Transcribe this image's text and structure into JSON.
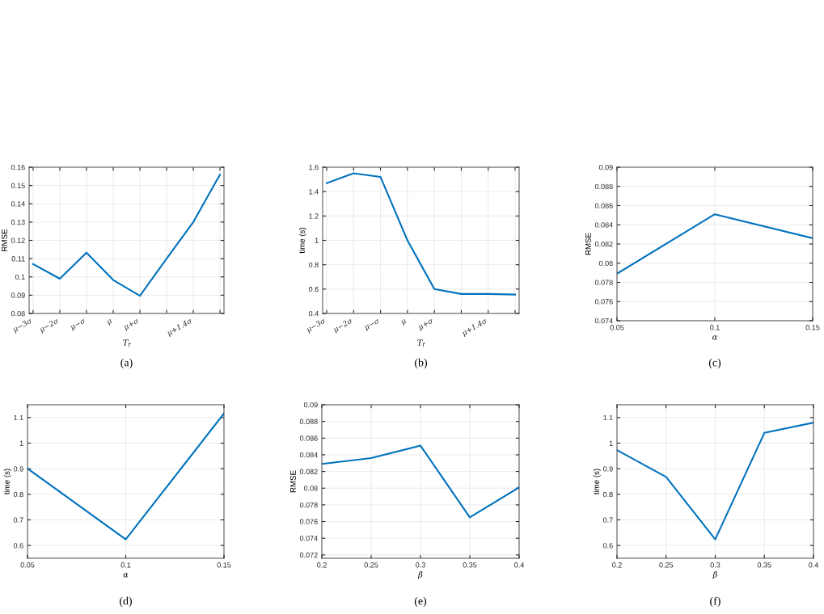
{
  "chart_data": [
    {
      "type": "line",
      "xlabel": "T$_{f}$",
      "ylabel": "RMSE",
      "annotations": [
        "(a)"
      ],
      "grid": true,
      "categories": [
        "μ−3σ",
        "μ−2σ",
        "μ−σ",
        "μ",
        "μ+σ",
        null,
        "μ+1.4σ",
        null
      ],
      "series": [
        {
          "color": "#0072bd",
          "values": [
            0.107,
            0.099,
            0.1133,
            0.0983,
            0.0897,
            0.11,
            0.13,
            0.156
          ]
        }
      ],
      "ylim": [
        0.08,
        0.16
      ],
      "yticks": [
        0.08,
        0.09,
        0.1,
        0.11,
        0.12,
        0.13,
        0.14,
        0.15,
        0.16
      ]
    },
    {
      "type": "line",
      "xlabel": "T$_{f}$",
      "ylabel": "time (s)",
      "annotations": [
        "(b)"
      ],
      "grid": true,
      "categories": [
        "μ−3σ",
        "μ−2σ",
        "μ−σ",
        "μ",
        "μ+σ",
        null,
        "μ+1.4σ",
        null
      ],
      "series": [
        {
          "color": "#0072bd",
          "values": [
            1.47,
            1.55,
            1.52,
            1.0,
            0.6,
            0.56,
            0.56,
            0.555
          ]
        }
      ],
      "ylim": [
        0.4,
        1.6
      ],
      "yticks": [
        0.4,
        0.6,
        0.8,
        1,
        1.2,
        1.4,
        1.6
      ]
    },
    {
      "type": "line",
      "xlabel": "α",
      "ylabel": "RMSE",
      "annotations": [
        "(c)"
      ],
      "grid": true,
      "x": [
        0.05,
        0.1,
        0.15
      ],
      "series": [
        {
          "color": "#0072bd",
          "values": [
            0.0789,
            0.0851,
            0.0826
          ]
        }
      ],
      "xlim": [
        0.05,
        0.15
      ],
      "ylim": [
        0.074,
        0.09
      ],
      "xticks": [
        0.05,
        0.1,
        0.15
      ],
      "yticks": [
        0.074,
        0.076,
        0.078,
        0.08,
        0.082,
        0.084,
        0.086,
        0.088,
        0.09
      ]
    },
    {
      "type": "line",
      "xlabel": "α",
      "ylabel": "time (s)",
      "annotations": [
        "(d)"
      ],
      "grid": true,
      "x": [
        0.05,
        0.1,
        0.15
      ],
      "series": [
        {
          "color": "#0072bd",
          "values": [
            0.901,
            0.624,
            1.116
          ]
        }
      ],
      "xlim": [
        0.05,
        0.15
      ],
      "ylim": [
        0.55,
        1.15
      ],
      "xticks": [
        0.05,
        0.1,
        0.15
      ],
      "yticks": [
        0.6,
        0.7,
        0.8,
        0.9,
        1,
        1.1
      ]
    },
    {
      "type": "line",
      "xlabel": "β",
      "ylabel": "RMSE",
      "annotations": [
        "(e)"
      ],
      "grid": true,
      "x": [
        0.2,
        0.25,
        0.3,
        0.35,
        0.4
      ],
      "series": [
        {
          "color": "#0072bd",
          "values": [
            0.0829,
            0.0836,
            0.0851,
            0.0765,
            0.0801
          ]
        }
      ],
      "xlim": [
        0.2,
        0.4
      ],
      "ylim": [
        0.0716,
        0.09
      ],
      "xticks": [
        0.2,
        0.25,
        0.3,
        0.35,
        0.4
      ],
      "yticks": [
        0.072,
        0.074,
        0.076,
        0.078,
        0.08,
        0.082,
        0.084,
        0.086,
        0.088,
        0.09
      ]
    },
    {
      "type": "line",
      "xlabel": "β",
      "ylabel": "time (s)",
      "annotations": [
        "(f)"
      ],
      "grid": true,
      "x": [
        0.2,
        0.25,
        0.3,
        0.35,
        0.4
      ],
      "series": [
        {
          "color": "#0072bd",
          "values": [
            0.973,
            0.868,
            0.624,
            1.04,
            1.08
          ]
        }
      ],
      "xlim": [
        0.2,
        0.4
      ],
      "ylim": [
        0.55,
        1.15
      ],
      "xticks": [
        0.2,
        0.25,
        0.3,
        0.35,
        0.4
      ],
      "yticks": [
        0.6,
        0.7,
        0.8,
        0.9,
        1,
        1.1
      ]
    }
  ]
}
